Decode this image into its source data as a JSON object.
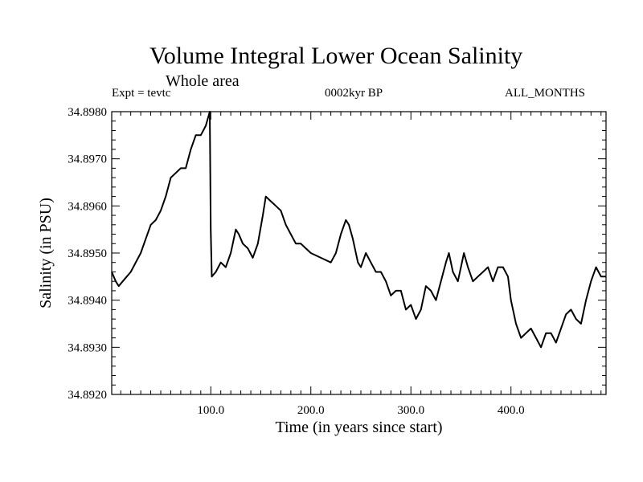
{
  "chart_data": {
    "type": "line",
    "title": "Volume Integral Lower Ocean Salinity",
    "subtitle": "Whole area",
    "annotations": {
      "left": "Expt = tevtc",
      "center": "0002kyr BP",
      "right": "ALL_MONTHS"
    },
    "xlabel": "Time (in years since start)",
    "ylabel": "Salinity (in PSU)",
    "xlim": [
      1,
      495
    ],
    "ylim": [
      34.892,
      34.898
    ],
    "x_ticks": [
      100,
      200,
      300,
      400
    ],
    "x_tick_labels": [
      "100.0",
      "200.0",
      "300.0",
      "400.0"
    ],
    "y_ticks": [
      34.892,
      34.893,
      34.894,
      34.895,
      34.896,
      34.897,
      34.898
    ],
    "y_tick_labels": [
      "34.8920",
      "34.8930",
      "34.8940",
      "34.8950",
      "34.8960",
      "34.8970",
      "34.8980"
    ],
    "grid": false,
    "series": [
      {
        "x": [
          1,
          5,
          8,
          12,
          16,
          20,
          25,
          30,
          35,
          40,
          45,
          50,
          55,
          60,
          65,
          70,
          75,
          80,
          85,
          90,
          95,
          99,
          100,
          101,
          105,
          110,
          115,
          120,
          125,
          128,
          132,
          137,
          142,
          147,
          152,
          155,
          160,
          165,
          170,
          175,
          180,
          185,
          190,
          200,
          210,
          220,
          225,
          230,
          235,
          238,
          242,
          247,
          250,
          255,
          260,
          265,
          270,
          275,
          280,
          285,
          290,
          295,
          300,
          305,
          310,
          315,
          320,
          325,
          330,
          335,
          338,
          342,
          347,
          350,
          353,
          357,
          362,
          367,
          372,
          377,
          382,
          387,
          392,
          397,
          400,
          405,
          410,
          415,
          420,
          425,
          430,
          435,
          440,
          445,
          450,
          455,
          460,
          465,
          470,
          475,
          480,
          485,
          490,
          495
        ],
        "y": [
          34.8946,
          34.8944,
          34.8943,
          34.8944,
          34.8945,
          34.8946,
          34.8948,
          34.895,
          34.8953,
          34.8956,
          34.8957,
          34.8959,
          34.8962,
          34.8966,
          34.8967,
          34.8968,
          34.8968,
          34.8972,
          34.8975,
          34.8975,
          34.8977,
          34.898,
          34.8955,
          34.8945,
          34.8946,
          34.8948,
          34.8947,
          34.895,
          34.8955,
          34.8954,
          34.8952,
          34.8951,
          34.8949,
          34.8952,
          34.8958,
          34.8962,
          34.8961,
          34.896,
          34.8959,
          34.8956,
          34.8954,
          34.8952,
          34.8952,
          34.895,
          34.8949,
          34.8948,
          34.895,
          34.8954,
          34.8957,
          34.8956,
          34.8953,
          34.8948,
          34.8947,
          34.895,
          34.8948,
          34.8946,
          34.8946,
          34.8944,
          34.8941,
          34.8942,
          34.8942,
          34.8938,
          34.8939,
          34.8936,
          34.8938,
          34.8943,
          34.8942,
          34.894,
          34.8944,
          34.8948,
          34.895,
          34.8946,
          34.8944,
          34.8947,
          34.895,
          34.8947,
          34.8944,
          34.8945,
          34.8946,
          34.8947,
          34.8944,
          34.8947,
          34.8947,
          34.8945,
          34.894,
          34.8935,
          34.8932,
          34.8933,
          34.8934,
          34.8932,
          34.893,
          34.8933,
          34.8933,
          34.8931,
          34.8934,
          34.8937,
          34.8938,
          34.8936,
          34.8935,
          34.894,
          34.8944,
          34.8947,
          34.8945,
          34.8945
        ]
      }
    ]
  },
  "colors": {
    "line": "#000000",
    "axis": "#000000",
    "background": "#ffffff"
  }
}
